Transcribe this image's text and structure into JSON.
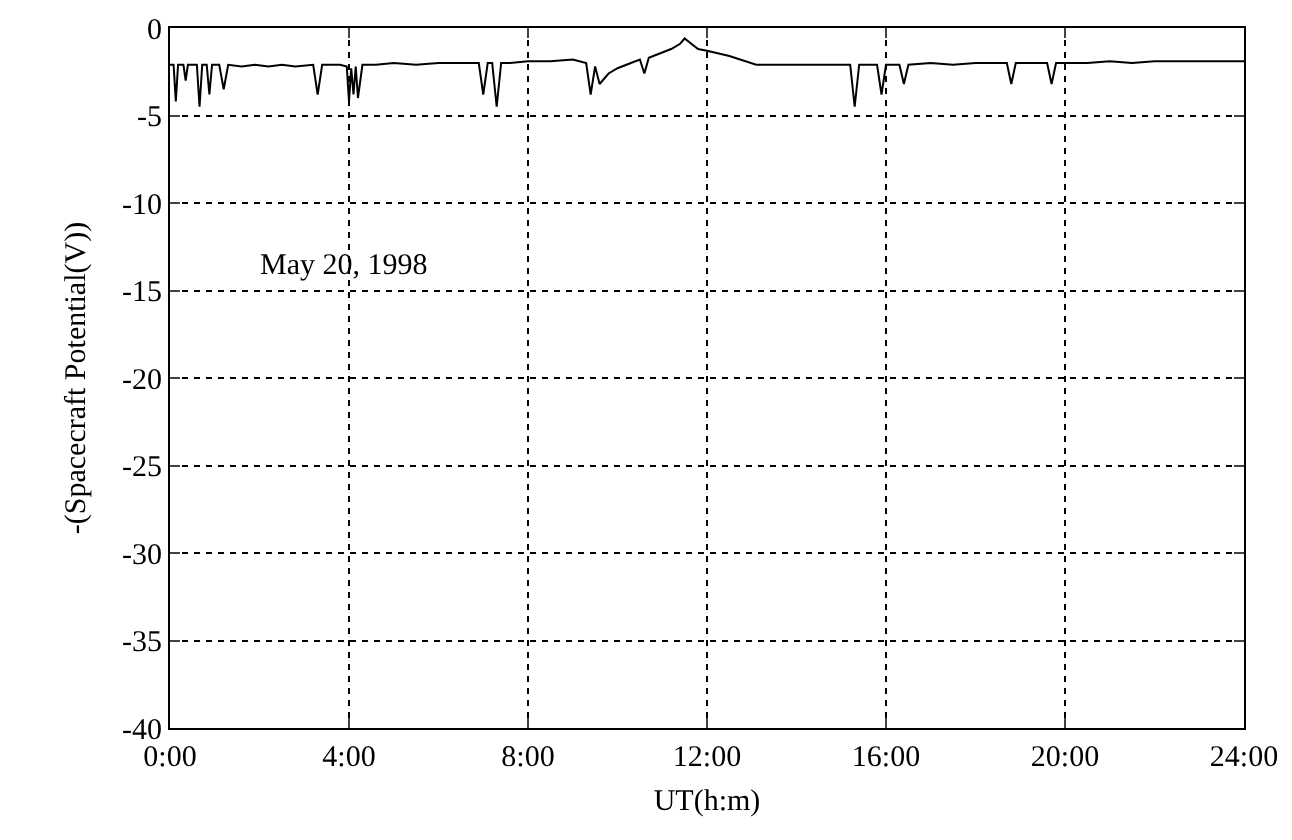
{
  "chart_data": {
    "type": "line",
    "xlabel": "UT(h:m)",
    "ylabel": "-(Spacecraft Potential(V))",
    "annotations": [
      "May 20, 1998"
    ],
    "xlim": [
      0,
      24
    ],
    "xticks": [
      {
        "value": 0,
        "label": "0:00"
      },
      {
        "value": 4,
        "label": "4:00"
      },
      {
        "value": 8,
        "label": "8:00"
      },
      {
        "value": 12,
        "label": "12:00"
      },
      {
        "value": 16,
        "label": "16:00"
      },
      {
        "value": 20,
        "label": "20:00"
      },
      {
        "value": 24,
        "label": "24:00"
      }
    ],
    "ylim": [
      -40,
      0
    ],
    "yticks": [
      -40,
      -35,
      -30,
      -25,
      -20,
      -15,
      -10,
      -5,
      0
    ],
    "grid": true,
    "series": [
      {
        "color": "#000000",
        "x": [
          0,
          0.08,
          0.13,
          0.18,
          0.3,
          0.35,
          0.4,
          0.6,
          0.66,
          0.72,
          0.82,
          0.88,
          0.94,
          1.1,
          1.2,
          1.3,
          1.6,
          1.9,
          2.2,
          2.5,
          2.8,
          3.2,
          3.3,
          3.4,
          3.8,
          3.95,
          4.0,
          4.05,
          4.1,
          4.15,
          4.2,
          4.3,
          4.6,
          5.0,
          5.5,
          6.0,
          6.5,
          6.9,
          7.0,
          7.1,
          7.2,
          7.3,
          7.4,
          7.6,
          8.0,
          8.5,
          9.0,
          9.3,
          9.4,
          9.5,
          9.6,
          9.8,
          10.0,
          10.3,
          10.5,
          10.6,
          10.7,
          10.8,
          11.0,
          11.2,
          11.4,
          11.5,
          11.6,
          11.8,
          12.0,
          12.5,
          13.1,
          13.6,
          14.2,
          14.7,
          15.2,
          15.3,
          15.4,
          15.8,
          15.9,
          16.0,
          16.3,
          16.4,
          16.5,
          17.0,
          17.5,
          18.0,
          18.7,
          18.8,
          18.9,
          19.6,
          19.7,
          19.8,
          20.5,
          21.0,
          21.5,
          22.0,
          22.5,
          23.0,
          23.5,
          24.0
        ],
        "values": [
          -2.1,
          -2.1,
          -4.2,
          -2.1,
          -2.1,
          -3.0,
          -2.1,
          -2.1,
          -4.5,
          -2.1,
          -2.1,
          -3.8,
          -2.1,
          -2.1,
          -3.5,
          -2.1,
          -2.2,
          -2.1,
          -2.2,
          -2.1,
          -2.2,
          -2.1,
          -3.8,
          -2.1,
          -2.1,
          -2.2,
          -4.2,
          -2.3,
          -3.8,
          -2.2,
          -4.0,
          -2.1,
          -2.1,
          -2.0,
          -2.1,
          -2.0,
          -2.0,
          -2.0,
          -3.8,
          -2.0,
          -2.0,
          -4.5,
          -2.0,
          -2.0,
          -1.9,
          -1.9,
          -1.8,
          -2.0,
          -3.8,
          -2.2,
          -3.2,
          -2.6,
          -2.3,
          -2.0,
          -1.8,
          -2.6,
          -1.7,
          -1.6,
          -1.4,
          -1.2,
          -0.9,
          -0.6,
          -0.8,
          -1.2,
          -1.3,
          -1.6,
          -2.1,
          -2.1,
          -2.1,
          -2.1,
          -2.1,
          -4.5,
          -2.1,
          -2.1,
          -3.8,
          -2.1,
          -2.1,
          -3.2,
          -2.1,
          -2.0,
          -2.1,
          -2.0,
          -2.0,
          -3.2,
          -2.0,
          -2.0,
          -3.2,
          -2.0,
          -2.0,
          -1.9,
          -2.0,
          -1.9,
          -1.9,
          -1.9,
          -1.9,
          -1.9
        ]
      }
    ]
  }
}
